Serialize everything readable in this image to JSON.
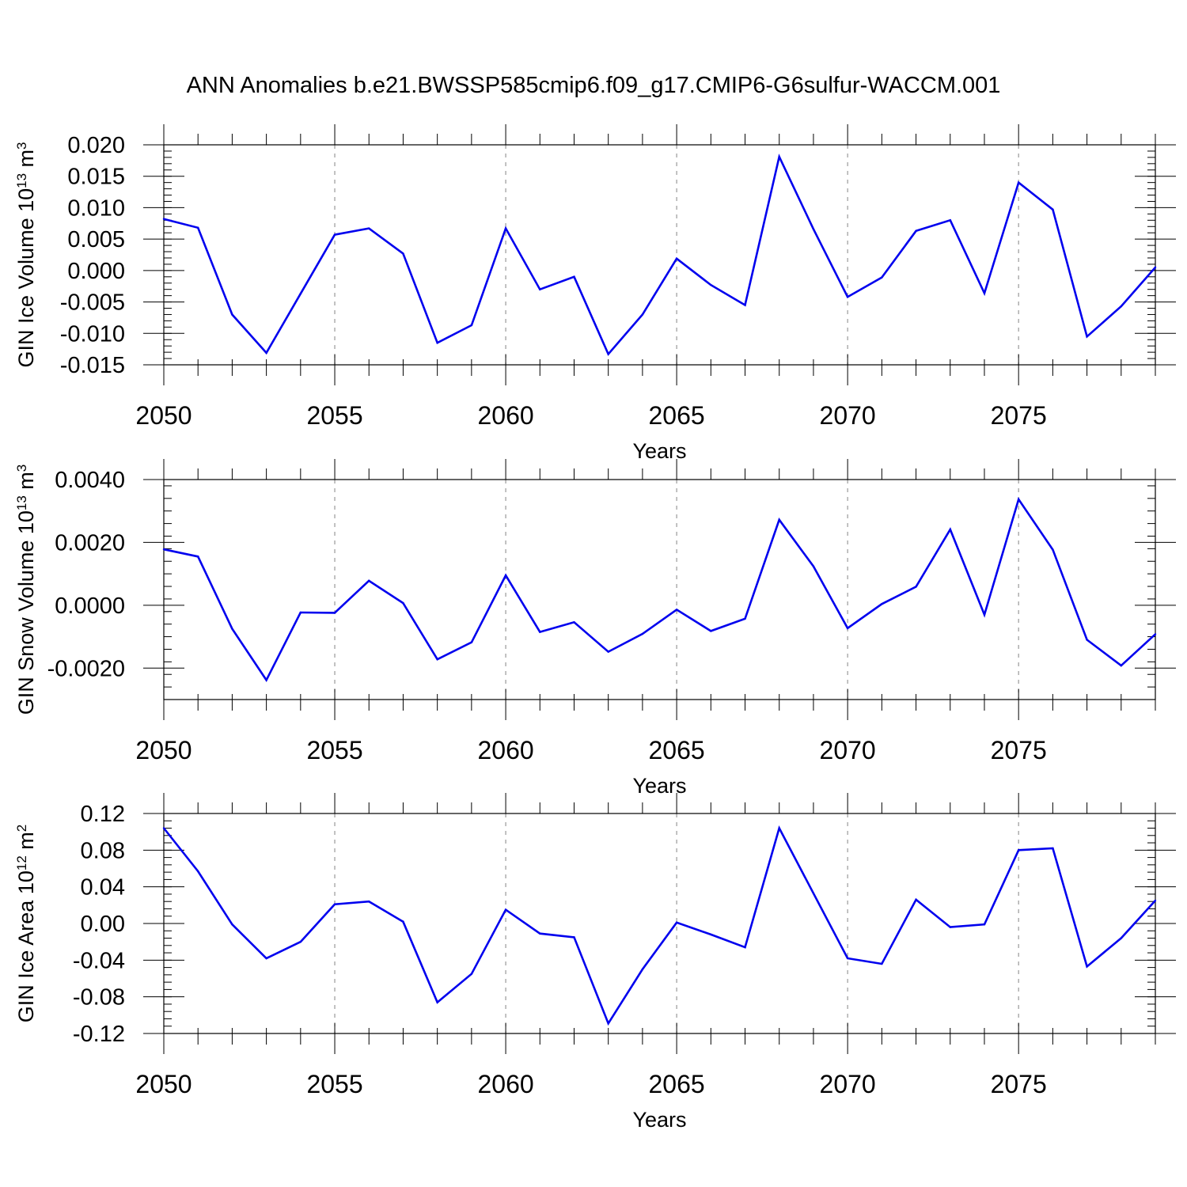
{
  "title": "ANN Anomalies b.e21.BWSSP585cmip6.f09_g17.CMIP6-G6sulfur-WACCM.001",
  "colors": {
    "series": "#0000ee",
    "grid": "#999999",
    "frame": "#000000"
  },
  "chart_data": [
    {
      "type": "line",
      "name": "ice-volume",
      "ylabel": "GIN Ice Volume 10",
      "ylabel_sup": "13",
      "ylabel_unit": " m",
      "ylabel_unit_sup": "3",
      "xlabel": "Years",
      "xlim": [
        2050,
        2079
      ],
      "ylim": [
        -0.015,
        0.02
      ],
      "yticks": [
        -0.015,
        -0.01,
        -0.005,
        0.0,
        0.005,
        0.01,
        0.015,
        0.02
      ],
      "ytick_labels": [
        "-0.015",
        "-0.010",
        "-0.005",
        "0.000",
        "0.005",
        "0.010",
        "0.015",
        "0.020"
      ],
      "xticks": [
        2050,
        2055,
        2060,
        2065,
        2070,
        2075
      ],
      "xtick_labels": [
        "2050",
        "2055",
        "2060",
        "2065",
        "2070",
        "2075"
      ],
      "grid": "vertical-dashed",
      "x": [
        2050,
        2051,
        2052,
        2053,
        2054,
        2055,
        2056,
        2057,
        2058,
        2059,
        2060,
        2061,
        2062,
        2063,
        2064,
        2065,
        2066,
        2067,
        2068,
        2069,
        2070,
        2071,
        2072,
        2073,
        2074,
        2075,
        2076,
        2077,
        2078,
        2079
      ],
      "values": [
        0.0082,
        0.0068,
        -0.007,
        -0.0131,
        -0.0037,
        0.0057,
        0.0067,
        0.0027,
        -0.0115,
        -0.0087,
        0.0067,
        -0.003,
        -0.001,
        -0.0133,
        -0.007,
        0.0019,
        -0.0023,
        -0.0055,
        0.0181,
        0.0066,
        -0.0042,
        -0.0011,
        0.0063,
        0.008,
        -0.0036,
        0.014,
        0.0097,
        -0.0105,
        -0.0057,
        0.0005
      ]
    },
    {
      "type": "line",
      "name": "snow-volume",
      "ylabel": "GIN Snow Volume 10",
      "ylabel_sup": "13",
      "ylabel_unit": " m",
      "ylabel_unit_sup": "3",
      "xlabel": "Years",
      "xlim": [
        2050,
        2079
      ],
      "ylim": [
        -0.003,
        0.004
      ],
      "yticks": [
        -0.002,
        0.0,
        0.002,
        0.004
      ],
      "ytick_labels": [
        "-0.0020",
        "0.0000",
        "0.0020",
        "0.0040"
      ],
      "xticks": [
        2050,
        2055,
        2060,
        2065,
        2070,
        2075
      ],
      "xtick_labels": [
        "2050",
        "2055",
        "2060",
        "2065",
        "2070",
        "2075"
      ],
      "grid": "vertical-dashed",
      "x": [
        2050,
        2051,
        2052,
        2053,
        2054,
        2055,
        2056,
        2057,
        2058,
        2059,
        2060,
        2061,
        2062,
        2063,
        2064,
        2065,
        2066,
        2067,
        2068,
        2069,
        2070,
        2071,
        2072,
        2073,
        2074,
        2075,
        2076,
        2077,
        2078,
        2079
      ],
      "values": [
        0.00178,
        0.00155,
        -0.00075,
        -0.00238,
        -0.00023,
        -0.00024,
        0.00078,
        7e-05,
        -0.00172,
        -0.00118,
        0.00095,
        -0.00085,
        -0.00054,
        -0.00148,
        -0.00091,
        -0.00014,
        -0.00082,
        -0.00043,
        0.00272,
        0.00124,
        -0.00073,
        4e-05,
        0.00059,
        0.00241,
        -0.0003,
        0.00337,
        0.00177,
        -0.0011,
        -0.00192,
        -0.00092
      ]
    },
    {
      "type": "line",
      "name": "ice-area",
      "ylabel": "GIN Ice Area 10",
      "ylabel_sup": "12",
      "ylabel_unit": " m",
      "ylabel_unit_sup": "2",
      "xlabel": "Years",
      "xlim": [
        2050,
        2079
      ],
      "ylim": [
        -0.12,
        0.12
      ],
      "yticks": [
        -0.12,
        -0.08,
        -0.04,
        0.0,
        0.04,
        0.08,
        0.12
      ],
      "ytick_labels": [
        "-0.12",
        "-0.08",
        "-0.04",
        "0.00",
        "0.04",
        "0.08",
        "0.12"
      ],
      "xticks": [
        2050,
        2055,
        2060,
        2065,
        2070,
        2075
      ],
      "xtick_labels": [
        "2050",
        "2055",
        "2060",
        "2065",
        "2070",
        "2075"
      ],
      "grid": "vertical-dashed",
      "x": [
        2050,
        2051,
        2052,
        2053,
        2054,
        2055,
        2056,
        2057,
        2058,
        2059,
        2060,
        2061,
        2062,
        2063,
        2064,
        2065,
        2066,
        2067,
        2068,
        2069,
        2070,
        2071,
        2072,
        2073,
        2074,
        2075,
        2076,
        2077,
        2078,
        2079
      ],
      "values": [
        0.104,
        0.057,
        -0.001,
        -0.038,
        -0.02,
        0.021,
        0.024,
        0.002,
        -0.086,
        -0.055,
        0.015,
        -0.011,
        -0.015,
        -0.109,
        -0.05,
        0.001,
        -0.012,
        -0.026,
        0.104,
        0.033,
        -0.038,
        -0.044,
        0.026,
        -0.004,
        -0.001,
        0.08,
        0.082,
        -0.047,
        -0.016,
        0.025
      ]
    }
  ]
}
